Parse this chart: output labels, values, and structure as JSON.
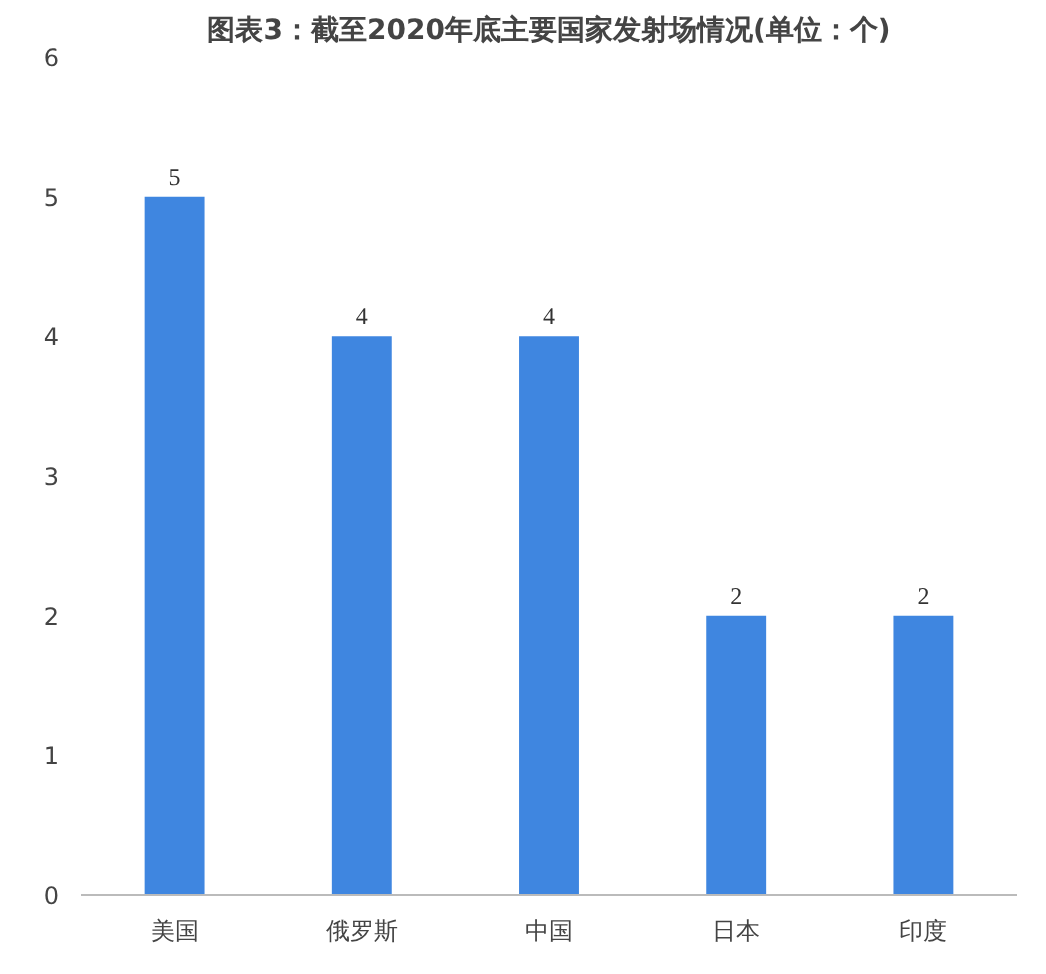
{
  "chart_data": {
    "type": "bar",
    "title": "图表3：截至2020年底主要国家发射场情况(单位：个)",
    "categories": [
      "美国",
      "俄罗斯",
      "中国",
      "日本",
      "印度"
    ],
    "values": [
      5,
      4,
      4,
      2,
      2
    ],
    "color": "#3f86e0",
    "ylim": [
      0,
      6
    ],
    "yticks": [
      0,
      1,
      2,
      3,
      4,
      5,
      6
    ],
    "grid": false,
    "data_labels": true
  }
}
